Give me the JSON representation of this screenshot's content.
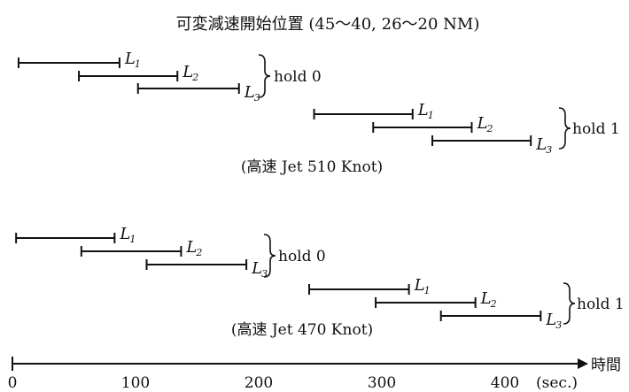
{
  "title": "可変減速開始位置 (45～40, 26～20 NM)",
  "time_axis": {
    "ticks": [
      "0",
      "100",
      "200",
      "300",
      "400"
    ],
    "unit_label": "(sec.)",
    "axis_label": "時間"
  },
  "groups": [
    {
      "caption": "(高速 Jet 510 Knot)",
      "holds": [
        {
          "label": "hold 0",
          "segments": [
            {
              "name": "L",
              "sub": "1",
              "start": 5,
              "end": 87
            },
            {
              "name": "L",
              "sub": "2",
              "start": 54,
              "end": 134
            },
            {
              "name": "L",
              "sub": "3",
              "start": 102,
              "end": 184
            }
          ]
        },
        {
          "label": "hold 1",
          "segments": [
            {
              "name": "L",
              "sub": "1",
              "start": 245,
              "end": 325
            },
            {
              "name": "L",
              "sub": "2",
              "start": 293,
              "end": 373
            },
            {
              "name": "L",
              "sub": "3",
              "start": 341,
              "end": 421
            }
          ]
        }
      ]
    },
    {
      "caption": "(高速 Jet 470 Knot)",
      "holds": [
        {
          "label": "hold 0",
          "segments": [
            {
              "name": "L",
              "sub": "1",
              "start": 3,
              "end": 83
            },
            {
              "name": "L",
              "sub": "2",
              "start": 56,
              "end": 137
            },
            {
              "name": "L",
              "sub": "3",
              "start": 109,
              "end": 190
            }
          ]
        },
        {
          "label": "hold 1",
          "segments": [
            {
              "name": "L",
              "sub": "1",
              "start": 241,
              "end": 322
            },
            {
              "name": "L",
              "sub": "2",
              "start": 295,
              "end": 376
            },
            {
              "name": "L",
              "sub": "3",
              "start": 348,
              "end": 429
            }
          ]
        }
      ]
    }
  ]
}
